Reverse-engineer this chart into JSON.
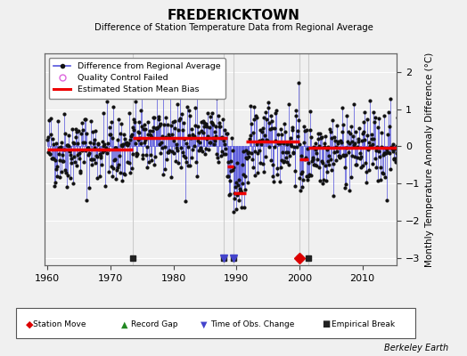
{
  "title": "FREDERICKTOWN",
  "subtitle": "Difference of Station Temperature Data from Regional Average",
  "ylabel": "Monthly Temperature Anomaly Difference (°C)",
  "xlabel_credit": "Berkeley Earth",
  "xlim": [
    1959.5,
    2015.5
  ],
  "ylim": [
    -3.2,
    2.5
  ],
  "yticks": [
    -3,
    -2,
    -1,
    0,
    1,
    2
  ],
  "xticks": [
    1960,
    1970,
    1980,
    1990,
    2000,
    2010
  ],
  "bg_color": "#f0f0f0",
  "plot_bg": "#f0f0f0",
  "line_color": "#5555dd",
  "dot_color": "#111111",
  "bias_color": "#ee0000",
  "segments": [
    {
      "start": 1960.0,
      "end": 1973.5,
      "bias": -0.08
    },
    {
      "start": 1973.5,
      "end": 1988.5,
      "bias": 0.22
    },
    {
      "start": 1988.5,
      "end": 1989.5,
      "bias": -0.55
    },
    {
      "start": 1989.5,
      "end": 1991.5,
      "bias": -1.25
    },
    {
      "start": 1991.5,
      "end": 2000.0,
      "bias": 0.12
    },
    {
      "start": 2000.0,
      "end": 2001.5,
      "bias": -0.35
    },
    {
      "start": 2001.5,
      "end": 2015.5,
      "bias": -0.05
    }
  ],
  "break_years": [
    1973.5,
    1988.0,
    1989.5,
    2000.0,
    2001.5
  ],
  "break_color": "#222222",
  "station_move_year": 2000.0,
  "station_move_color": "#dd0000",
  "obs_change_years": [
    1988.0,
    1989.5
  ],
  "obs_change_color": "#4444cc",
  "seed": 42,
  "noise_scale": 0.52
}
